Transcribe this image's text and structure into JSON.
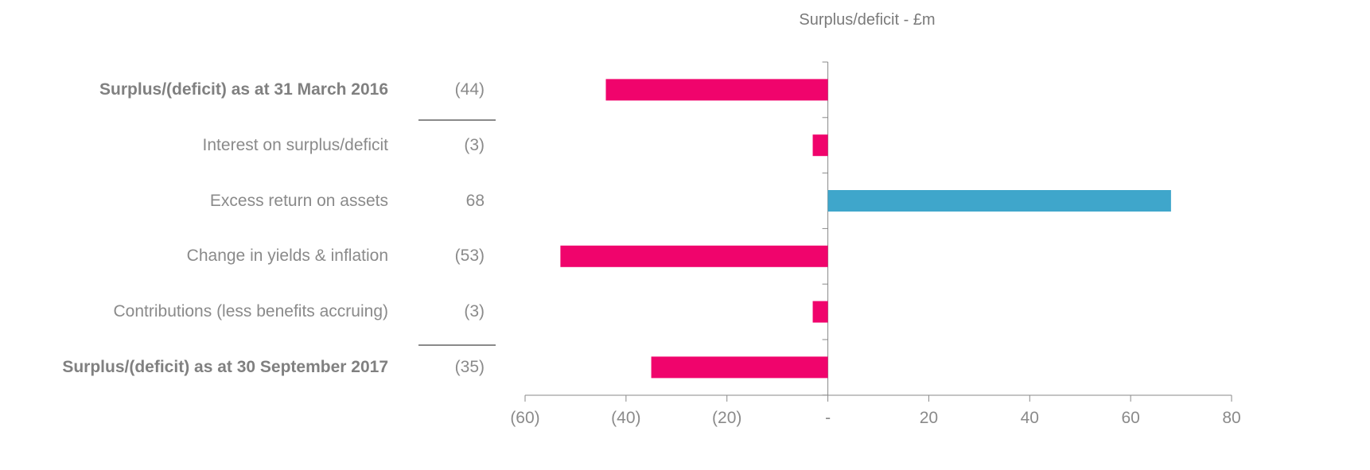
{
  "chart_data": {
    "type": "bar",
    "orientation": "horizontal",
    "title": "Surplus/deficit - £m",
    "categories": [
      "Surplus/(deficit) as at 31 March 2016",
      "Interest on surplus/deficit",
      "Excess return on assets",
      "Change in yields & inflation",
      "Contributions (less benefits accruing)",
      "Surplus/(deficit) as at 30 September 2017"
    ],
    "value_labels": [
      "(44)",
      "(3)",
      "68",
      "(53)",
      "(3)",
      "(35)"
    ],
    "values": [
      -44,
      -3,
      68,
      -53,
      -3,
      -35
    ],
    "bold_categories": [
      true,
      false,
      false,
      false,
      false,
      true
    ],
    "xlim": [
      -60,
      80
    ],
    "xticks": [
      -60,
      -40,
      -20,
      0,
      20,
      40,
      60,
      80
    ],
    "xtick_labels": [
      "(60)",
      "(40)",
      "(20)",
      "-",
      "20",
      "40",
      "60",
      "80"
    ],
    "grid": false,
    "legend": "none",
    "colors": {
      "negative": "#f0046c",
      "positive": "#3fa6cb",
      "axis": "#8a8a8a",
      "text": "#8a8a8a"
    }
  }
}
